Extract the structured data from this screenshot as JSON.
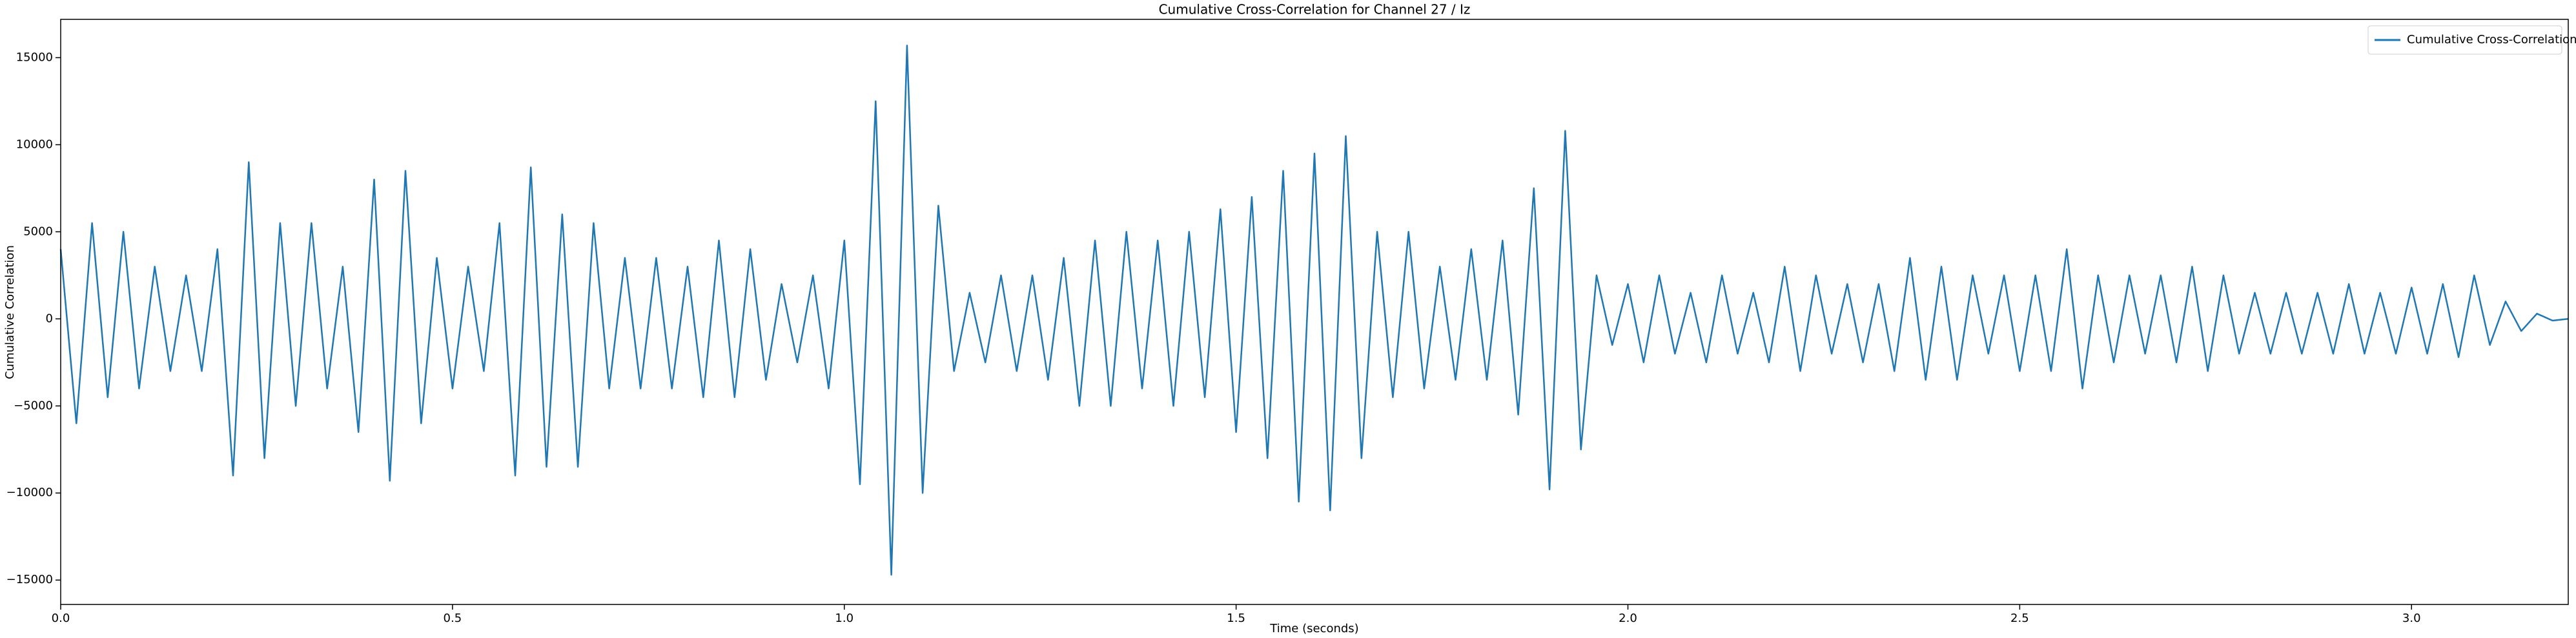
{
  "chart_data": {
    "type": "line",
    "title": "Cumulative Cross-Correlation for Channel 27 / Iz",
    "xlabel": "Time (seconds)",
    "ylabel": "Cumulative Correlation",
    "x": [
      0,
      0.02,
      0.04,
      0.06,
      0.08,
      0.1,
      0.12,
      0.14,
      0.16,
      0.18,
      0.2,
      0.22,
      0.24,
      0.26,
      0.28,
      0.3,
      0.32,
      0.34,
      0.36,
      0.38,
      0.4,
      0.42,
      0.44,
      0.46,
      0.48,
      0.5,
      0.52,
      0.54,
      0.56,
      0.58,
      0.6,
      0.62,
      0.64,
      0.66,
      0.68,
      0.7,
      0.72,
      0.74,
      0.76,
      0.78,
      0.8,
      0.82,
      0.84,
      0.86,
      0.88,
      0.9,
      0.92,
      0.94,
      0.96,
      0.98,
      1,
      1.02,
      1.04,
      1.06,
      1.08,
      1.1,
      1.12,
      1.14,
      1.16,
      1.18,
      1.2,
      1.22,
      1.24,
      1.26,
      1.28,
      1.3,
      1.32,
      1.34,
      1.36,
      1.38,
      1.4,
      1.42,
      1.44,
      1.46,
      1.48,
      1.5,
      1.52,
      1.54,
      1.56,
      1.58,
      1.6,
      1.62,
      1.64,
      1.66,
      1.68,
      1.7,
      1.72,
      1.74,
      1.76,
      1.78,
      1.8,
      1.82,
      1.84,
      1.86,
      1.88,
      1.9,
      1.92,
      1.94,
      1.96,
      1.98,
      2,
      2.02,
      2.04,
      2.06,
      2.08,
      2.1,
      2.12,
      2.14,
      2.16,
      2.18,
      2.2,
      2.22,
      2.24,
      2.26,
      2.28,
      2.3,
      2.32,
      2.34,
      2.36,
      2.38,
      2.4,
      2.42,
      2.44,
      2.46,
      2.48,
      2.5,
      2.52,
      2.54,
      2.56,
      2.58,
      2.6,
      2.62,
      2.64,
      2.66,
      2.68,
      2.7,
      2.72,
      2.74,
      2.76,
      2.78,
      2.8,
      2.82,
      2.84,
      2.86,
      2.88,
      2.9,
      2.92,
      2.94,
      2.96,
      2.98,
      3,
      3.02,
      3.04,
      3.06,
      3.08,
      3.1,
      3.12,
      3.14,
      3.16,
      3.18,
      3.2
    ],
    "series": [
      {
        "name": "Cumulative Cross-Correlation",
        "color": "#1f77b4",
        "values": [
          4000,
          -6000,
          5500,
          -4500,
          5000,
          -4000,
          3000,
          -3000,
          2500,
          -3000,
          4000,
          -9000,
          9000,
          -8000,
          5500,
          -5000,
          5500,
          -4000,
          3000,
          -6500,
          8000,
          -9300,
          8500,
          -6000,
          3500,
          -4000,
          3000,
          -3000,
          5500,
          -9000,
          8700,
          -8500,
          6000,
          -8500,
          5500,
          -4000,
          3500,
          -4000,
          3500,
          -4000,
          3000,
          -4500,
          4500,
          -4500,
          4000,
          -3500,
          2000,
          -2500,
          2500,
          -4000,
          4500,
          -9500,
          12500,
          -14700,
          15700,
          -10000,
          6500,
          -3000,
          1500,
          -2500,
          2500,
          -3000,
          2500,
          -3500,
          3500,
          -5000,
          4500,
          -5000,
          5000,
          -4000,
          4500,
          -5000,
          5000,
          -4500,
          6300,
          -6500,
          7000,
          -8000,
          8500,
          -10500,
          9500,
          -11000,
          10500,
          -8000,
          5000,
          -4500,
          5000,
          -4000,
          3000,
          -3500,
          4000,
          -3500,
          4500,
          -5500,
          7500,
          -9800,
          10800,
          -7500,
          2500,
          -1500,
          2000,
          -2500,
          2500,
          -2000,
          1500,
          -2500,
          2500,
          -2000,
          1500,
          -2500,
          3000,
          -3000,
          2500,
          -2000,
          2000,
          -2500,
          2000,
          -3000,
          3500,
          -3500,
          3000,
          -3500,
          2500,
          -2000,
          2500,
          -3000,
          2500,
          -3000,
          4000,
          -4000,
          2500,
          -2500,
          2500,
          -2000,
          2500,
          -2500,
          3000,
          -3000,
          2500,
          -2000,
          1500,
          -2000,
          1500,
          -2000,
          1500,
          -2000,
          2000,
          -2000,
          1500,
          -2000,
          1800,
          -2000,
          2000,
          -2200,
          2500,
          -1500,
          1000,
          -700,
          300,
          -100,
          0
        ]
      }
    ],
    "xlim": [
      0,
      3.2
    ],
    "ylim": [
      -16400,
      17200
    ],
    "xticks": [
      {
        "value": 0,
        "label": "0.0"
      },
      0.5,
      {
        "value": 1,
        "label": "1.0"
      },
      1.5,
      {
        "value": 2,
        "label": "2.0"
      },
      2.5,
      {
        "value": 3,
        "label": "3.0"
      }
    ],
    "yticks": [
      {
        "value": -15000,
        "label": "−15000"
      },
      {
        "value": -10000,
        "label": "−10000"
      },
      {
        "value": -5000,
        "label": "−5000"
      },
      0,
      5000,
      10000,
      15000
    ],
    "legend": "upper right",
    "grid": false
  }
}
